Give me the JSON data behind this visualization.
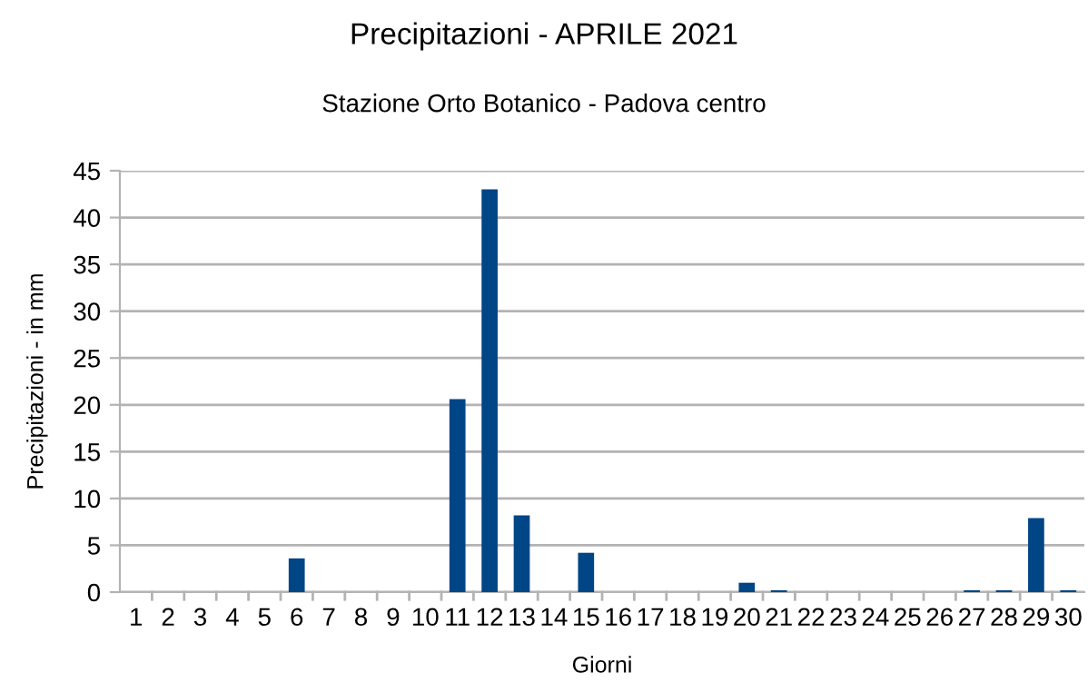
{
  "chart_data": {
    "type": "bar",
    "title": "Precipitazioni - APRILE 2021",
    "subtitle": "Stazione Orto Botanico - Padova centro",
    "xlabel": "Giorni",
    "ylabel": "Precipitazioni - in mm",
    "categories": [
      "1",
      "2",
      "3",
      "4",
      "5",
      "6",
      "7",
      "8",
      "9",
      "10",
      "11",
      "12",
      "13",
      "14",
      "15",
      "16",
      "17",
      "18",
      "19",
      "20",
      "21",
      "22",
      "23",
      "24",
      "25",
      "26",
      "27",
      "28",
      "29",
      "30"
    ],
    "values": [
      0,
      0,
      0,
      0,
      0,
      3.6,
      0,
      0,
      0,
      0,
      20.6,
      43,
      8.2,
      0,
      4.2,
      0,
      0,
      0,
      0,
      1.0,
      0.2,
      0,
      0,
      0,
      0,
      0,
      0.2,
      0.2,
      7.9,
      0.2
    ],
    "color": "#004586",
    "ylim": [
      0,
      45
    ],
    "yticks": [
      0,
      5,
      10,
      15,
      20,
      25,
      30,
      35,
      40,
      45
    ],
    "grid": "y",
    "legend": false
  }
}
